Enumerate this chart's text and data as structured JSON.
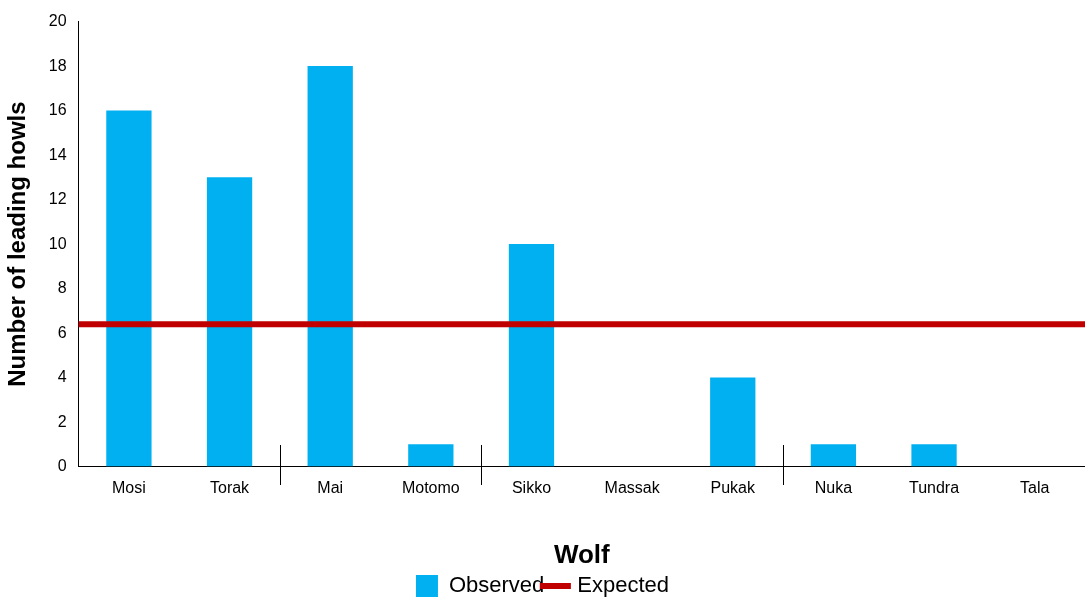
{
  "chart_data": {
    "type": "bar",
    "xlabel": "Wolf",
    "ylabel": "Number of leading howls",
    "categories": [
      "Mosi",
      "Torak",
      "Mai",
      "Motomo",
      "Sikko",
      "Massak",
      "Pukak",
      "Nuka",
      "Tundra",
      "Tala"
    ],
    "series": [
      {
        "name": "Observed",
        "color": "#00b0f0",
        "values": [
          16,
          13,
          18,
          1,
          10,
          0,
          4,
          1,
          1,
          0
        ]
      }
    ],
    "ylim": [
      0,
      20
    ],
    "yticks": [
      0,
      2,
      4,
      6,
      8,
      10,
      12,
      14,
      16,
      18,
      20
    ],
    "grid": false,
    "legend": "bottom",
    "ref_lines": [
      {
        "axis": "y",
        "value": 6.4,
        "label": "Expected",
        "color": "#c00000"
      }
    ]
  }
}
